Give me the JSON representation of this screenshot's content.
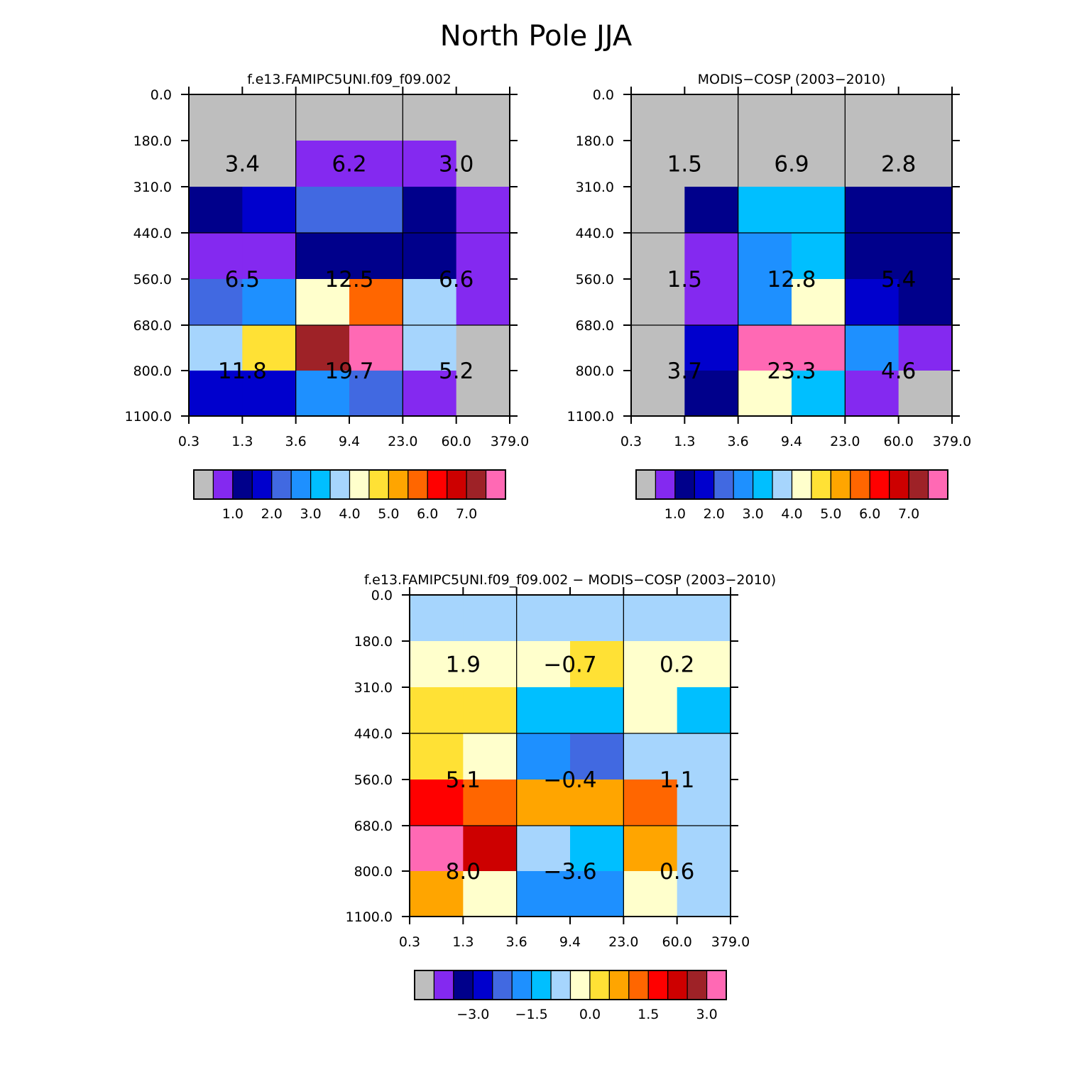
{
  "figure": {
    "title": "North Pole JJA"
  },
  "colors": {
    "cbar_main": [
      "#bebebe",
      "#8429f0",
      "#00008b",
      "#0000cd",
      "#4169e1",
      "#1e90ff",
      "#00bfff",
      "#a6d5fd",
      "#ffffcc",
      "#ffe135",
      "#ffa500",
      "#ff6600",
      "#ff0000",
      "#cd0000",
      "#9e2227",
      "#ff69b4"
    ],
    "cbar_diff": [
      "#bebebe",
      "#8429f0",
      "#00008b",
      "#0000cd",
      "#4169e1",
      "#1e90ff",
      "#00bfff",
      "#a6d5fd",
      "#ffffcc",
      "#ffe135",
      "#ffa500",
      "#ff6600",
      "#ff0000",
      "#cd0000",
      "#9e2227",
      "#ff69b4"
    ]
  },
  "chart_data": [
    {
      "type": "heatmap",
      "title": "f.e13.FAMIPC5UNI.f09_f09.002",
      "x_edges": [
        "0.3",
        "1.3",
        "3.6",
        "9.4",
        "23.0",
        "60.0",
        "379.0"
      ],
      "y_edges": [
        "0.0",
        "180.0",
        "310.0",
        "440.0",
        "560.0",
        "680.0",
        "800.0",
        "1100.0"
      ],
      "cells": [
        [
          0,
          0,
          0,
          0,
          0,
          0
        ],
        [
          0,
          0,
          1,
          1,
          1,
          0
        ],
        [
          2,
          3,
          4,
          4,
          2,
          1
        ],
        [
          1,
          1,
          2,
          2,
          2,
          1
        ],
        [
          4,
          5,
          8,
          11,
          7,
          1
        ],
        [
          7,
          9,
          14,
          15,
          7,
          0
        ],
        [
          3,
          3,
          5,
          4,
          1,
          0
        ]
      ],
      "block_labels": [
        [
          "3.4",
          "6.2",
          "3.0"
        ],
        [
          "6.5",
          "12.5",
          "6.6"
        ],
        [
          "11.8",
          "19.7",
          "5.2"
        ]
      ],
      "colorbar": {
        "palette": "cbar_main",
        "tick_labels": [
          "1.0",
          "2.0",
          "3.0",
          "4.0",
          "5.0",
          "6.0",
          "7.0"
        ]
      }
    },
    {
      "type": "heatmap",
      "title": "MODIS-COSP (2003-2010)",
      "x_edges": [
        "0.3",
        "1.3",
        "3.6",
        "9.4",
        "23.0",
        "60.0",
        "379.0"
      ],
      "y_edges": [
        "0.0",
        "180.0",
        "310.0",
        "440.0",
        "560.0",
        "680.0",
        "800.0",
        "1100.0"
      ],
      "cells": [
        [
          0,
          0,
          0,
          0,
          0,
          0
        ],
        [
          0,
          0,
          0,
          0,
          0,
          0
        ],
        [
          0,
          2,
          6,
          6,
          2,
          2
        ],
        [
          0,
          1,
          5,
          6,
          2,
          2
        ],
        [
          0,
          1,
          5,
          8,
          3,
          2
        ],
        [
          0,
          3,
          15,
          15,
          5,
          1
        ],
        [
          0,
          2,
          8,
          6,
          1,
          0
        ]
      ],
      "block_labels": [
        [
          "1.5",
          "6.9",
          "2.8"
        ],
        [
          "1.5",
          "12.8",
          "5.4"
        ],
        [
          "3.7",
          "23.3",
          "4.6"
        ]
      ],
      "colorbar": {
        "palette": "cbar_main",
        "tick_labels": [
          "1.0",
          "2.0",
          "3.0",
          "4.0",
          "5.0",
          "6.0",
          "7.0"
        ]
      }
    },
    {
      "type": "heatmap",
      "title": "f.e13.FAMIPC5UNI.f09_f09.002 - MODIS-COSP (2003-2010)",
      "x_edges": [
        "0.3",
        "1.3",
        "3.6",
        "9.4",
        "23.0",
        "60.0",
        "379.0"
      ],
      "y_edges": [
        "0.0",
        "180.0",
        "310.0",
        "440.0",
        "560.0",
        "680.0",
        "800.0",
        "1100.0"
      ],
      "cells": [
        [
          7,
          7,
          7,
          7,
          7,
          7
        ],
        [
          8,
          8,
          8,
          9,
          8,
          8
        ],
        [
          9,
          9,
          6,
          6,
          8,
          6
        ],
        [
          9,
          8,
          5,
          4,
          7,
          7
        ],
        [
          12,
          11,
          10,
          10,
          11,
          7
        ],
        [
          15,
          13,
          7,
          6,
          10,
          7
        ],
        [
          10,
          8,
          5,
          5,
          8,
          7
        ]
      ],
      "block_labels": [
        [
          "1.9",
          "-0.7",
          "0.2"
        ],
        [
          "5.1",
          "-0.4",
          "1.1"
        ],
        [
          "8.0",
          "-3.6",
          "0.6"
        ]
      ],
      "colorbar": {
        "palette": "cbar_diff",
        "tick_labels": [
          "-3.0",
          "-1.5",
          "0.0",
          "1.5",
          "3.0"
        ]
      }
    }
  ]
}
